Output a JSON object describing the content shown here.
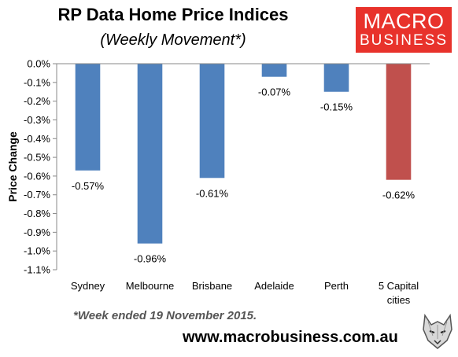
{
  "header": {
    "title": "RP Data Home Price Indices",
    "subtitle": "(Weekly Movement*)"
  },
  "logo": {
    "line1": "MACRO",
    "line2": "BUSINESS"
  },
  "footnote": "*Week ended 19 November 2015.",
  "website": "www.macrobusiness.com.au",
  "chart_data": {
    "type": "bar",
    "ylabel": "Price Change",
    "ylim": [
      -1.1,
      0.0
    ],
    "yticks": [
      "0.0%",
      "-0.1%",
      "-0.2%",
      "-0.3%",
      "-0.4%",
      "-0.5%",
      "-0.6%",
      "-0.7%",
      "-0.8%",
      "-0.9%",
      "-1.0%",
      "-1.1%"
    ],
    "categories": [
      "Sydney",
      "Melbourne",
      "Brisbane",
      "Adelaide",
      "Perth",
      "5 Capital cities"
    ],
    "values": [
      -0.57,
      -0.96,
      -0.61,
      -0.07,
      -0.15,
      -0.62
    ],
    "data_labels": [
      "-0.57%",
      "-0.96%",
      "-0.61%",
      "-0.07%",
      "-0.15%",
      "-0.62%"
    ],
    "colors": [
      "#4f81bd",
      "#4f81bd",
      "#4f81bd",
      "#4f81bd",
      "#4f81bd",
      "#c0504d"
    ],
    "grid": false,
    "legend": "none"
  }
}
